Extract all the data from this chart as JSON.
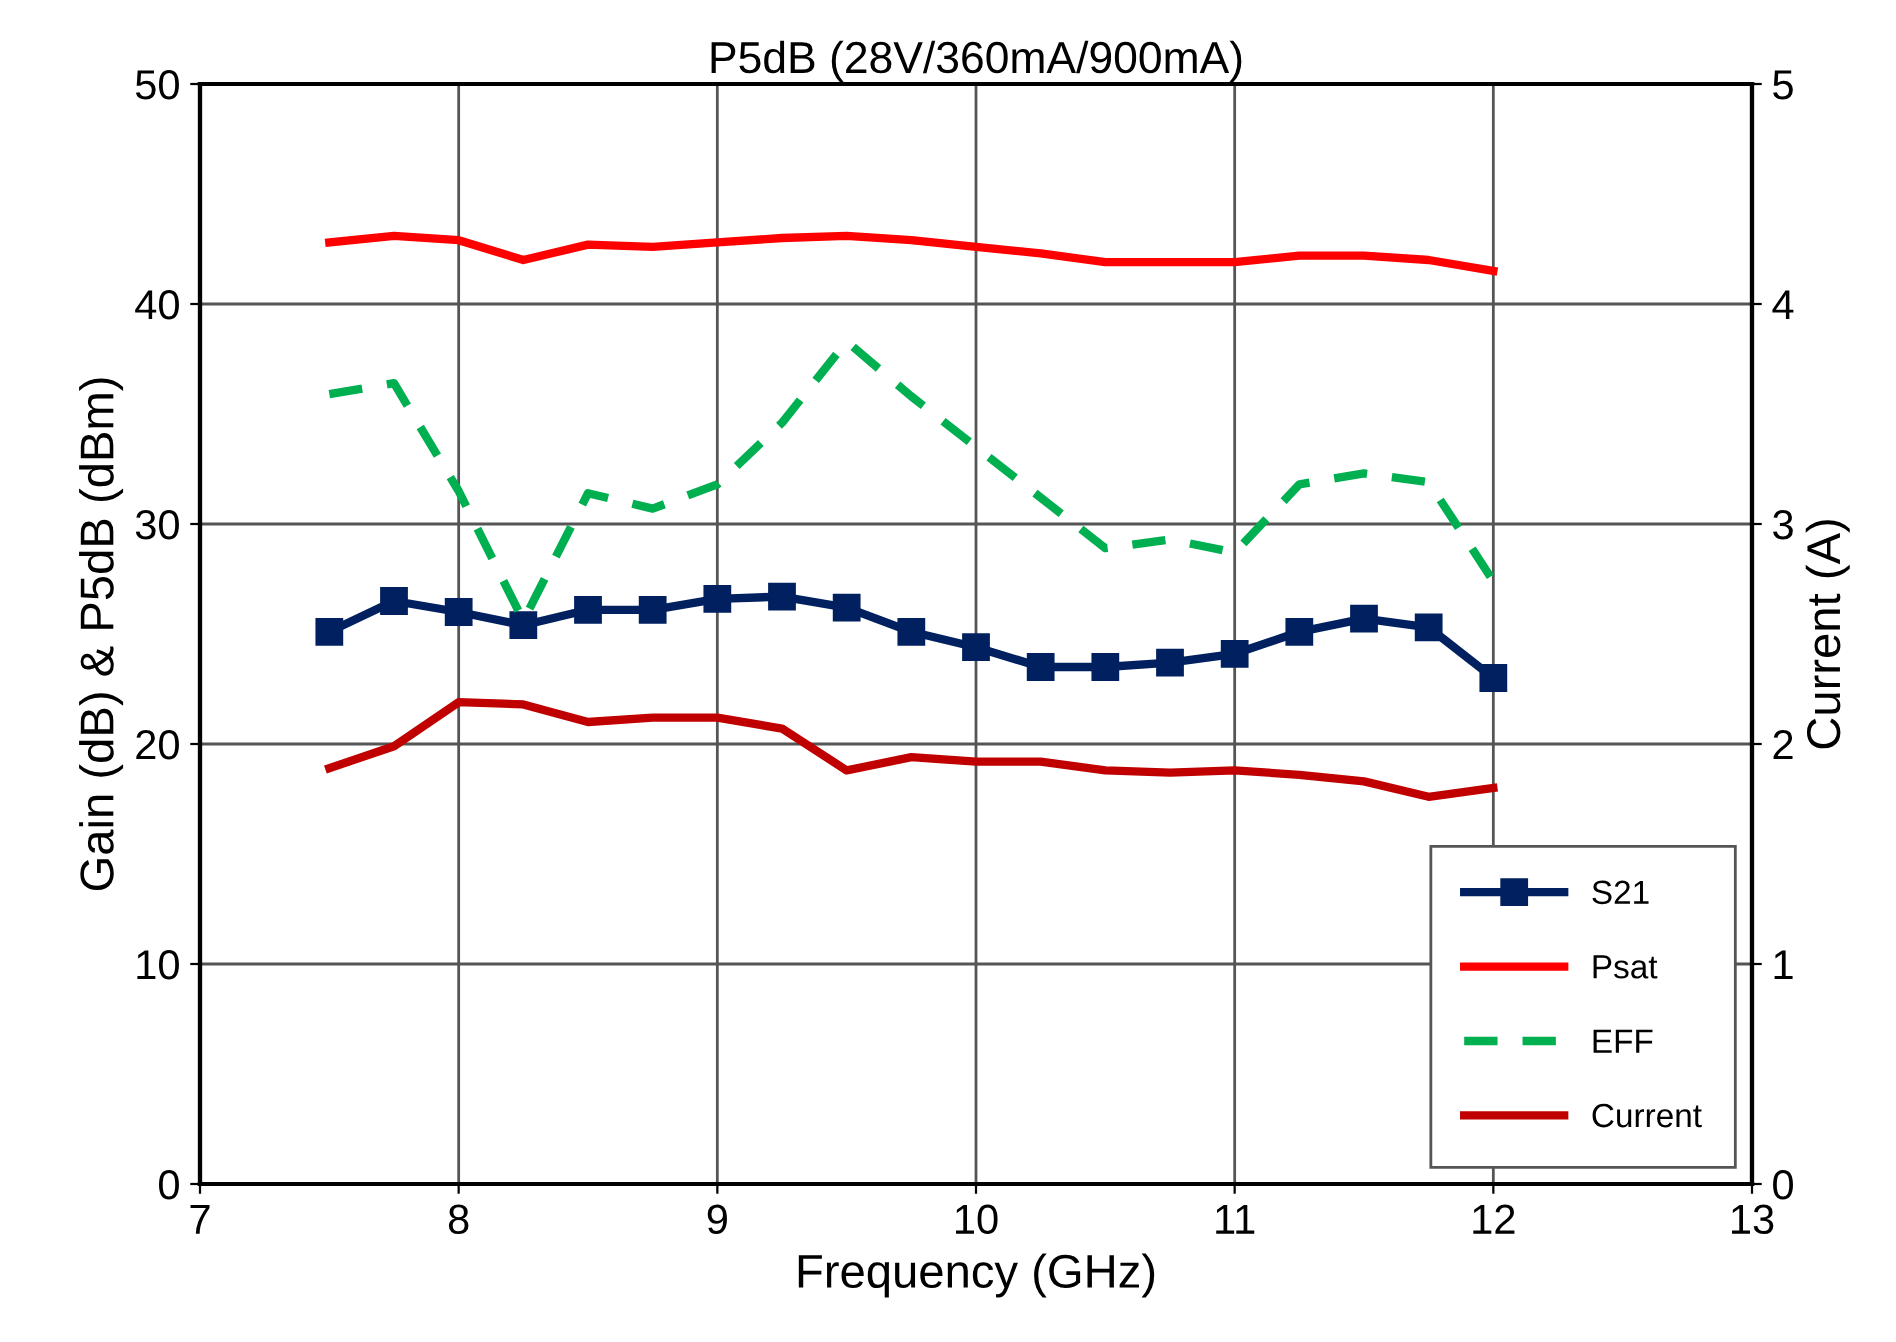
{
  "chart_data": {
    "type": "line",
    "title": "P5dB (28V/360mA/900mA)",
    "xlabel": "Frequency (GHz)",
    "ylabel": "Gain (dB) & P5dB (dBm)",
    "y2label": "Current (A)",
    "x": [
      7.5,
      7.75,
      8,
      8.25,
      8.5,
      8.75,
      9,
      9.25,
      9.5,
      9.75,
      10,
      10.25,
      10.5,
      10.75,
      11,
      11.25,
      11.5,
      11.75,
      12
    ],
    "series": [
      {
        "name": "S21",
        "color": "#002060",
        "marker": "square",
        "line_style": "solid",
        "values": [
          25.1,
          26.5,
          26.0,
          25.4,
          26.1,
          26.1,
          26.6,
          26.7,
          26.2,
          25.1,
          24.4,
          23.5,
          23.5,
          23.7,
          24.1,
          25.1,
          25.7,
          25.3,
          23.0
        ]
      },
      {
        "name": "Psat",
        "color": "#ff0000",
        "marker": "none",
        "line_style": "solid",
        "values": [
          42.8,
          43.1,
          42.9,
          42.0,
          42.7,
          42.6,
          42.8,
          43.0,
          43.1,
          42.9,
          42.6,
          42.3,
          41.9,
          41.9,
          41.9,
          42.2,
          42.2,
          42.0,
          41.5
        ]
      },
      {
        "name": "EFF",
        "color": "#00b050",
        "marker": "none",
        "line_style": "dashed",
        "values": [
          35.9,
          36.4,
          31.5,
          25.6,
          31.4,
          30.7,
          31.8,
          34.6,
          38.3,
          35.8,
          33.5,
          31.2,
          28.9,
          29.3,
          28.7,
          31.8,
          32.3,
          31.9,
          27.4
        ]
      },
      {
        "name": "Current",
        "color": "#c00000",
        "marker": "none",
        "line_style": "solid",
        "axis": "y2",
        "values": [
          1.89,
          1.99,
          2.19,
          2.18,
          2.1,
          2.12,
          2.12,
          2.07,
          1.88,
          1.94,
          1.92,
          1.92,
          1.88,
          1.87,
          1.88,
          1.86,
          1.83,
          1.76,
          1.8
        ]
      }
    ],
    "xlim": [
      7,
      13
    ],
    "xticks": [
      7,
      8,
      9,
      10,
      11,
      12,
      13
    ],
    "ylim": [
      0,
      50
    ],
    "yticks": [
      0,
      10,
      20,
      30,
      40,
      50
    ],
    "y2lim": [
      0,
      5
    ],
    "y2ticks": [
      0,
      1,
      2,
      3,
      4,
      5
    ],
    "grid": true,
    "legend": "bottom right"
  }
}
